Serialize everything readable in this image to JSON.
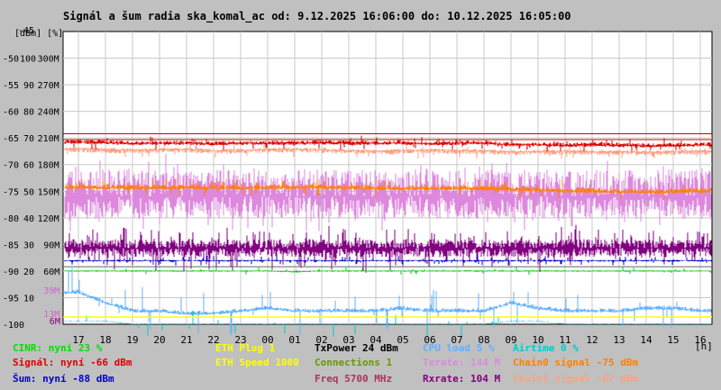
{
  "chart_data": {
    "type": "line",
    "title": "Signál a šum radia ska_komal_ac od: 9.12.2025 16:06:00 do: 10.12.2025 16:05:00",
    "y_unit_label": "[dBm] [%]",
    "x_unit_label": "[h]",
    "y_axis_dbm": {
      "range": [
        -100,
        -45
      ],
      "ticks": [
        "-45",
        "-50",
        "-55",
        "-60",
        "-65",
        "-70",
        "-75",
        "-80",
        "-85",
        "-90",
        "-95",
        "-100"
      ]
    },
    "y_axis_percent": {
      "range": [
        0,
        110
      ],
      "ticks": [
        "100",
        "90",
        "80",
        "70",
        "60",
        "50",
        "40",
        "30",
        "20",
        "10"
      ]
    },
    "y_axis_rate": {
      "unit": "M",
      "ticks": [
        "300M",
        "270M",
        "240M",
        "210M",
        "180M",
        "150M",
        "120M",
        "90M"
      ]
    },
    "inline_axis_labels": [
      {
        "text": "60M",
        "color": "#000000"
      },
      {
        "text": "39M",
        "color": "#cc66cc"
      },
      {
        "text": "13M",
        "color": "#cc66cc"
      },
      {
        "text": "6M",
        "color": "#800080"
      }
    ],
    "x_axis": {
      "ticks": [
        "17",
        "18",
        "19",
        "20",
        "21",
        "22",
        "23",
        "00",
        "01",
        "02",
        "03",
        "04",
        "05",
        "06",
        "07",
        "08",
        "09",
        "10",
        "11",
        "12",
        "13",
        "14",
        "15",
        "16"
      ]
    },
    "grid": true,
    "series": [
      {
        "name": "Signál",
        "color": "#dd0000",
        "values": [
          -65.8,
          -65.9,
          -66,
          -66,
          -66,
          -66.1,
          -66,
          -66,
          -66,
          -65.9,
          -66,
          -66,
          -66,
          -66.1,
          -66,
          -66,
          -66.3,
          -66.3,
          -66.4,
          -66.3,
          -66.4,
          -66.5,
          -66.4,
          -66.3
        ]
      },
      {
        "name": "Chain1 signal",
        "color": "#ffa080",
        "values": [
          -67,
          -67.2,
          -67.3,
          -67.2,
          -67.1,
          -67.4,
          -67.3,
          -67.2,
          -67.1,
          -67.2,
          -67.4,
          -67.5,
          -67.4,
          -67.3,
          -67.4,
          -67.4,
          -67.6,
          -67.6,
          -67.5,
          -67.6,
          -67.6,
          -67.7,
          -67.6,
          -67.5
        ]
      },
      {
        "name": "Chain0 signal",
        "color": "#ff8000",
        "values": [
          -74.3,
          -74.3,
          -74.4,
          -74.4,
          -74.4,
          -74.4,
          -74.4,
          -74.4,
          -74.3,
          -74.3,
          -74.4,
          -74.5,
          -74.5,
          -74.5,
          -74.5,
          -74.6,
          -74.7,
          -74.8,
          -75,
          -75,
          -75.1,
          -75.2,
          -75.1,
          -75
        ]
      },
      {
        "name": "Šum",
        "color": "#0000cc",
        "values": [
          -88,
          -88,
          -88,
          -88,
          -88,
          -88,
          -88,
          -88,
          -88,
          -88,
          -88,
          -88,
          -88,
          -88,
          -88,
          -88,
          -88,
          -88,
          -88,
          -88,
          -88,
          -88,
          -88,
          -88
        ]
      },
      {
        "name": "CINR",
        "color": "#00cc00",
        "values": [
          23,
          23,
          23,
          23,
          23,
          23,
          23,
          23,
          22,
          23,
          23,
          23,
          23,
          23,
          23,
          23,
          23,
          23,
          23,
          23,
          23,
          23,
          23,
          23
        ]
      },
      {
        "name": "Txrate",
        "color": "#dd88dd",
        "values": [
          144,
          144,
          144,
          144,
          144,
          144,
          144,
          144,
          144,
          144,
          144,
          144,
          144,
          144,
          144,
          144,
          144,
          144,
          144,
          144,
          144,
          144,
          144,
          144
        ]
      },
      {
        "name": "Rxrate",
        "color": "#800080",
        "values": [
          104,
          104,
          104,
          104,
          104,
          104,
          104,
          104,
          104,
          104,
          104,
          104,
          104,
          104,
          104,
          104,
          104,
          104,
          104,
          104,
          104,
          104,
          104,
          104
        ]
      },
      {
        "name": "CPU load",
        "color": "#60b0ff",
        "values": [
          12,
          8,
          5,
          5,
          4,
          4,
          5,
          6,
          5,
          5,
          5,
          5,
          6,
          5,
          5,
          5,
          8,
          6,
          5,
          5,
          5,
          6,
          6,
          5
        ]
      },
      {
        "name": "Airtime",
        "color": "#00cccc",
        "values": [
          1,
          1,
          0,
          0,
          0,
          0,
          0,
          0,
          0,
          0,
          0,
          0,
          0,
          0,
          0,
          0,
          1,
          1,
          0,
          0,
          0,
          0,
          0,
          0
        ]
      }
    ]
  },
  "legend": {
    "col1": [
      {
        "text": "CINR: nyní 23 %",
        "color": "#00dd00"
      },
      {
        "text": "Signál: nyní -66 dBm",
        "color": "#dd0000"
      },
      {
        "text": "Šum: nyní -88 dBm",
        "color": "#0000cc"
      }
    ],
    "col2": [
      {
        "text": "ETH Plug 1",
        "color": "#ffff00"
      },
      {
        "text": "ETH Speed 1000",
        "color": "#ffff00"
      }
    ],
    "col3": [
      {
        "text": "TxPower 24 dBm",
        "color": "#000000"
      },
      {
        "text": "Connections 1",
        "color": "#669900"
      },
      {
        "text": "Freq 5700 MHz",
        "color": "#b03060"
      }
    ],
    "col4": [
      {
        "text": "CPU load 5 %",
        "color": "#60b0ff"
      },
      {
        "text": "Txrate: 144 M",
        "color": "#dd88dd"
      },
      {
        "text": "Rxrate: 104 M",
        "color": "#800080"
      }
    ],
    "col5": [
      {
        "text": "Airtime 0 %",
        "color": "#00cccc"
      },
      {
        "text": "Chain0 signal -75 dBm",
        "color": "#ff8000"
      },
      {
        "text": "Chain1 signal -67 dBm",
        "color": "#ffa080"
      }
    ]
  }
}
